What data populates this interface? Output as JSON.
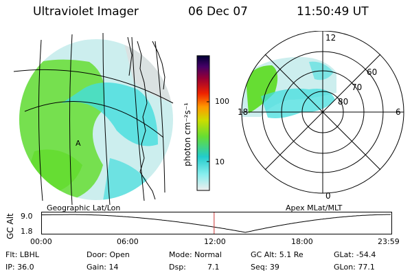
{
  "header": {
    "title": "Ultraviolet Imager",
    "date": "06 Dec 07",
    "time": "11:50:49 UT"
  },
  "colors": {
    "green": "#66dd33",
    "cyan": "#44dddd",
    "pale": "#cceeee",
    "lightgray": "#dddddd",
    "marker": "#cc3333"
  },
  "geo_map": {
    "label": "Geographic Lat/Lon",
    "center_mark": "A"
  },
  "colorbar": {
    "unit_label": "photon cm⁻²s⁻¹",
    "ticks": [
      "100",
      "10"
    ]
  },
  "polar_map": {
    "label": "Apex MLat/MLT",
    "lat_labels": [
      "60",
      "70",
      "80"
    ],
    "mlt_labels": {
      "top": "12",
      "bottom": "0",
      "left": "18",
      "right": "6"
    }
  },
  "altitude_plot": {
    "ylabel": "GC Alt",
    "ymax_label": "9.0",
    "ymin_label": "1.8",
    "time_ticks": [
      "00:00",
      "06:00",
      "12:00",
      "18:00",
      "23:59"
    ],
    "current_marker_hours": 11.85,
    "perigee_hours": 14.0,
    "apogee_hours": 2.0
  },
  "footer": {
    "flt": "Flt: LBHL",
    "door": "Door: Open",
    "mode": "Mode: Normal",
    "gc_alt": "GC Alt: 5.1 Re",
    "glat": "GLat: -54.4",
    "ip": "IP: 36.0",
    "gain": "Gain: 14",
    "dsp_label": "Dsp:",
    "dsp_value": "7.1",
    "seq": "Seq: 39",
    "glon": "GLon: 77.1"
  }
}
